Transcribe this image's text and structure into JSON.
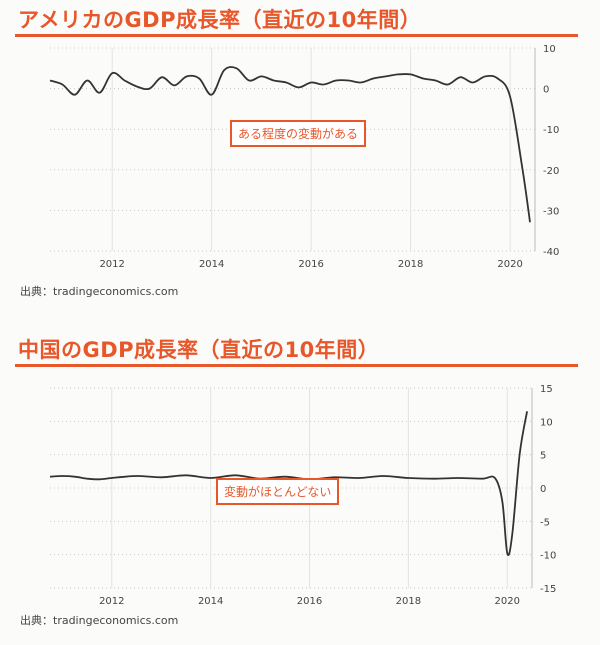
{
  "charts": [
    {
      "title": "アメリカのGDP成長率（直近の10年間）",
      "source": "出典：tradingeconomics.com",
      "annotation": "ある程度の変動がある",
      "colors": {
        "accent": "#e8572a",
        "line": "#333333"
      }
    },
    {
      "title": "中国のGDP成長率（直近の10年間）",
      "source": "出典：tradingeconomics.com",
      "annotation": "変動がほとんどない",
      "colors": {
        "accent": "#e8572a",
        "line": "#333333"
      }
    }
  ],
  "chart_data": [
    {
      "type": "line",
      "title": "アメリカのGDP成長率（直近の10年間）",
      "xlabel": "",
      "ylabel": "",
      "xlim": [
        2010.75,
        2020.5
      ],
      "ylim": [
        -40,
        10
      ],
      "x_ticks": [
        2012,
        2014,
        2016,
        2018,
        2020
      ],
      "y_ticks": [
        10,
        0,
        -10,
        -20,
        -30,
        -40
      ],
      "grid": true,
      "series": [
        {
          "x": [
            2010.75,
            2011.0,
            2011.25,
            2011.5,
            2011.75,
            2012.0,
            2012.25,
            2012.5,
            2012.75,
            2013.0,
            2013.25,
            2013.5,
            2013.75,
            2014.0,
            2014.25,
            2014.5,
            2014.75,
            2015.0,
            2015.25,
            2015.5,
            2015.75,
            2016.0,
            2016.25,
            2016.5,
            2016.75,
            2017.0,
            2017.25,
            2017.5,
            2017.75,
            2018.0,
            2018.25,
            2018.5,
            2018.75,
            2019.0,
            2019.25,
            2019.5,
            2019.75,
            2020.0,
            2020.25,
            2020.4
          ],
          "y": [
            2.0,
            1.0,
            -1.5,
            2.0,
            -1.0,
            3.8,
            2.0,
            0.5,
            0.0,
            2.8,
            0.8,
            3.0,
            2.5,
            -1.5,
            4.5,
            5.0,
            2.0,
            3.0,
            2.0,
            1.5,
            0.3,
            1.5,
            1.0,
            2.0,
            2.0,
            1.5,
            2.5,
            3.0,
            3.5,
            3.5,
            2.5,
            2.0,
            1.0,
            2.8,
            1.5,
            3.0,
            2.5,
            -2.0,
            -20.0,
            -32.9
          ]
        }
      ]
    },
    {
      "type": "line",
      "title": "中国のGDP成長率（直近の10年間）",
      "xlabel": "",
      "ylabel": "",
      "xlim": [
        2010.75,
        2020.5
      ],
      "ylim": [
        -15,
        15
      ],
      "x_ticks": [
        2012,
        2014,
        2016,
        2018,
        2020
      ],
      "y_ticks": [
        15,
        10,
        5,
        0,
        -5,
        -10,
        -15
      ],
      "grid": true,
      "series": [
        {
          "x": [
            2010.75,
            2011.0,
            2011.25,
            2011.5,
            2011.75,
            2012.0,
            2012.5,
            2013.0,
            2013.5,
            2014.0,
            2014.5,
            2015.0,
            2015.5,
            2016.0,
            2016.5,
            2017.0,
            2017.5,
            2018.0,
            2018.5,
            2019.0,
            2019.5,
            2019.75,
            2019.9,
            2020.0,
            2020.1,
            2020.25,
            2020.4
          ],
          "y": [
            1.7,
            1.8,
            1.7,
            1.4,
            1.3,
            1.5,
            1.8,
            1.6,
            1.9,
            1.5,
            1.9,
            1.4,
            1.7,
            1.3,
            1.6,
            1.5,
            1.8,
            1.5,
            1.4,
            1.5,
            1.4,
            1.5,
            -2.0,
            -9.8,
            -7.0,
            5.0,
            11.5
          ]
        }
      ]
    }
  ]
}
